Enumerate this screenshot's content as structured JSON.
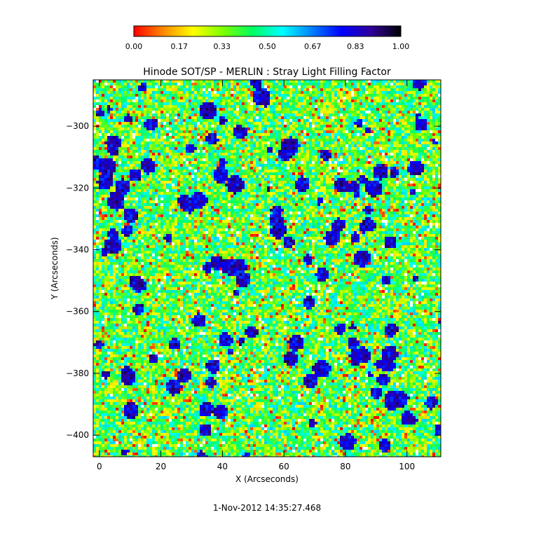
{
  "chart_data": {
    "type": "heatmap",
    "title": "Hinode SOT/SP - MERLIN : Stray Light Filling Factor",
    "xlabel": "X (Arcseconds)",
    "ylabel": "Y (Arcseconds)",
    "xlim": [
      -2,
      111
    ],
    "ylim": [
      -407,
      -285
    ],
    "x_ticks": [
      0,
      20,
      40,
      60,
      80,
      100
    ],
    "x_tick_labels": [
      "0",
      "20",
      "40",
      "60",
      "80",
      "100"
    ],
    "y_ticks": [
      -300,
      -320,
      -340,
      -360,
      -380,
      -400
    ],
    "y_tick_labels": [
      "−300",
      "−320",
      "−340",
      "−360",
      "−380",
      "−400"
    ],
    "colorbar": {
      "range": [
        0.0,
        1.0
      ],
      "tick_values": [
        0.0,
        0.17,
        0.33,
        0.5,
        0.67,
        0.83,
        1.0
      ],
      "tick_labels": [
        "0.00",
        "0.17",
        "0.33",
        "0.50",
        "0.67",
        "0.83",
        "1.00"
      ],
      "colors": [
        "#ff0000",
        "#ff8a00",
        "#ffff00",
        "#7dff00",
        "#00ff60",
        "#00ffff",
        "#0080ff",
        "#0000ff",
        "#30009a",
        "#000000"
      ]
    },
    "grid": false,
    "footer_text": "1-Nov-2012 14:35:27.468"
  }
}
